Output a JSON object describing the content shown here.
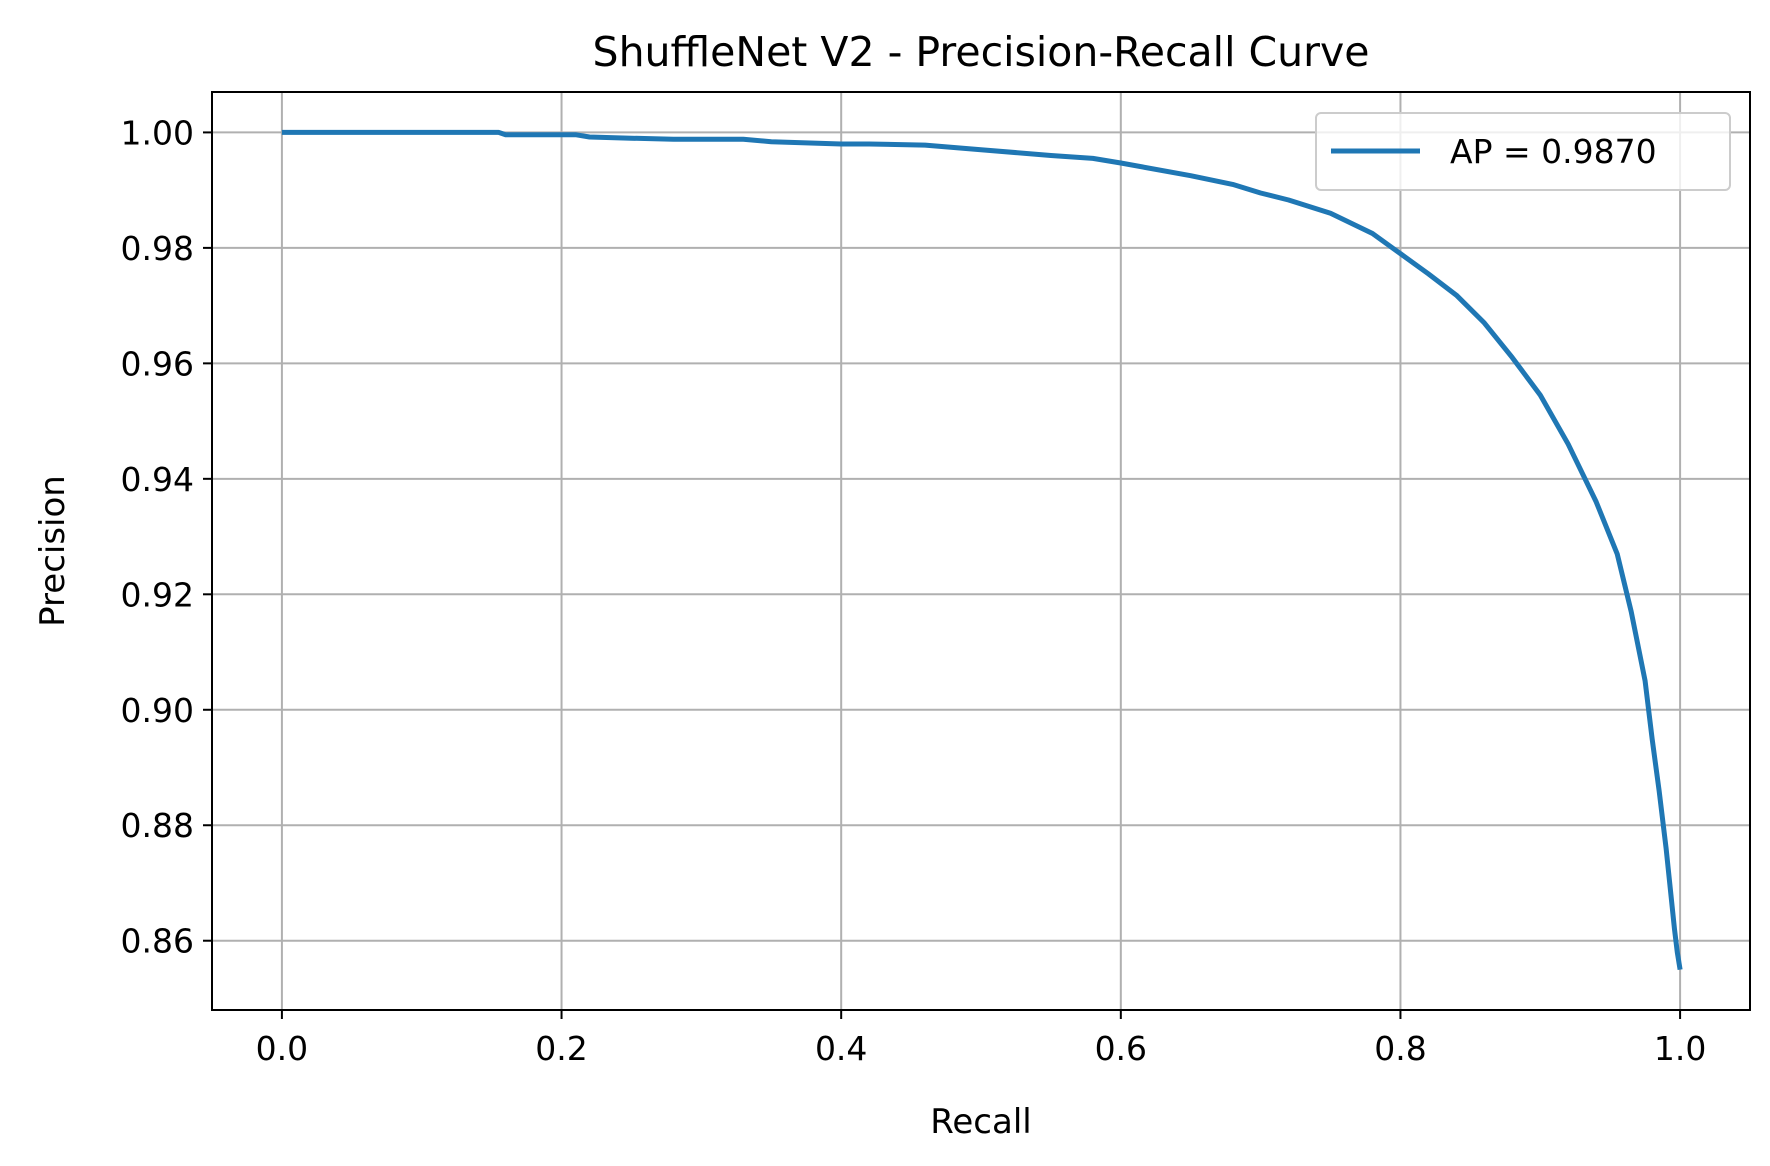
{
  "chart_data": {
    "type": "line",
    "title": "ShuffleNet V2 - Precision-Recall Curve",
    "xlabel": "Recall",
    "ylabel": "Precision",
    "xlim": [
      -0.05,
      1.05
    ],
    "ylim": [
      0.848,
      1.007
    ],
    "xticks": [
      0.0,
      0.2,
      0.4,
      0.6,
      0.8,
      1.0
    ],
    "xtick_labels": [
      "0.0",
      "0.2",
      "0.4",
      "0.6",
      "0.8",
      "1.0"
    ],
    "yticks": [
      0.86,
      0.88,
      0.9,
      0.92,
      0.94,
      0.96,
      0.98,
      1.0
    ],
    "ytick_labels": [
      "0.86",
      "0.88",
      "0.90",
      "0.92",
      "0.94",
      "0.96",
      "0.98",
      "1.00"
    ],
    "grid": true,
    "legend_position": "top-right",
    "series": [
      {
        "name": "AP = 0.9870",
        "color": "#1f77b4",
        "x": [
          0.0,
          0.05,
          0.1,
          0.155,
          0.16,
          0.21,
          0.22,
          0.25,
          0.28,
          0.33,
          0.35,
          0.4,
          0.42,
          0.46,
          0.5,
          0.55,
          0.58,
          0.6,
          0.65,
          0.68,
          0.7,
          0.72,
          0.75,
          0.78,
          0.8,
          0.82,
          0.84,
          0.86,
          0.88,
          0.9,
          0.92,
          0.94,
          0.955,
          0.965,
          0.975,
          0.98,
          0.985,
          0.99,
          0.993,
          0.996,
          0.998,
          1.0
        ],
        "y": [
          1.0,
          1.0,
          1.0,
          1.0,
          0.9996,
          0.9996,
          0.9992,
          0.999,
          0.9988,
          0.9988,
          0.9984,
          0.998,
          0.998,
          0.9978,
          0.997,
          0.996,
          0.9955,
          0.9947,
          0.9925,
          0.991,
          0.9895,
          0.9883,
          0.986,
          0.9825,
          0.979,
          0.9755,
          0.9718,
          0.967,
          0.961,
          0.9545,
          0.946,
          0.936,
          0.927,
          0.917,
          0.905,
          0.895,
          0.886,
          0.876,
          0.869,
          0.862,
          0.858,
          0.855
        ]
      }
    ]
  }
}
